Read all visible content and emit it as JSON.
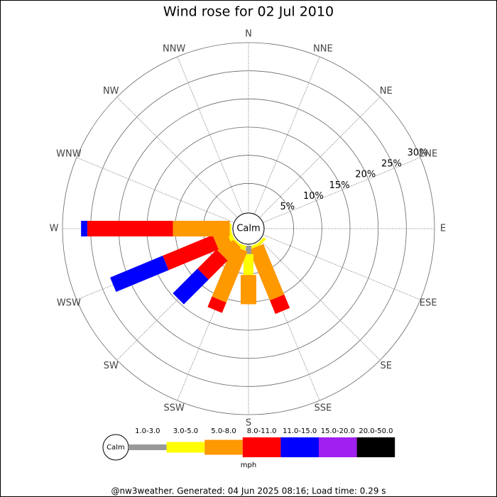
{
  "chart_data": {
    "type": "windrose",
    "title": "Wind rose for 02 Jul 2010",
    "categories": [
      "N",
      "NNE",
      "NE",
      "ENE",
      "E",
      "ESE",
      "SE",
      "SSE",
      "S",
      "SSW",
      "SW",
      "WSW",
      "W",
      "WNW",
      "NW",
      "NNW"
    ],
    "calm_label": "Calm",
    "rlim": [
      0,
      30
    ],
    "rticks": [
      {
        "value": 5,
        "label": "5%"
      },
      {
        "value": 10,
        "label": "10%"
      },
      {
        "value": 15,
        "label": "15%"
      },
      {
        "value": 20,
        "label": "20%"
      },
      {
        "value": 25,
        "label": "25%"
      },
      {
        "value": 30,
        "label": "30%"
      }
    ],
    "legend_unit": "mph",
    "series": [
      {
        "name": "1.0-3.0",
        "color": "#999999",
        "values": [
          0,
          0,
          0,
          0,
          0,
          0,
          0,
          0,
          1.5,
          0,
          0,
          0,
          0,
          0,
          0,
          0
        ]
      },
      {
        "name": "3.0-5.0",
        "color": "#ffff00",
        "values": [
          0,
          0,
          0,
          0,
          0,
          0,
          0.5,
          0.5,
          3.7,
          0.8,
          0.3,
          0.8,
          0.3,
          0,
          0,
          0
        ]
      },
      {
        "name": "5.0-8.0",
        "color": "#ff9900",
        "values": [
          0,
          0,
          0,
          0,
          0,
          0,
          0,
          9.7,
          5.2,
          9.8,
          3.3,
          2.5,
          10.1,
          0,
          0,
          0
        ]
      },
      {
        "name": "8.0-11.0",
        "color": "#ff0000",
        "values": [
          0,
          0,
          0,
          0,
          0,
          0,
          0,
          2.6,
          0,
          2.0,
          4.8,
          9.6,
          15.2,
          0,
          0,
          0
        ]
      },
      {
        "name": "11.0-15.0",
        "color": "#0000ff",
        "values": [
          0,
          0,
          0,
          0,
          0,
          0,
          0,
          0,
          0,
          0,
          6.2,
          10.1,
          1.1,
          0,
          0,
          0
        ]
      },
      {
        "name": "15.0-20.0",
        "color": "#a020f0",
        "values": [
          0,
          0,
          0,
          0,
          0,
          0,
          0,
          0,
          0,
          0,
          0,
          0,
          0,
          0,
          0,
          0
        ]
      },
      {
        "name": "20.0-50.0",
        "color": "#000000",
        "values": [
          0,
          0,
          0,
          0,
          0,
          0,
          0,
          0,
          0,
          0,
          0,
          0,
          0,
          0,
          0,
          0
        ]
      }
    ],
    "footer": "@nw3weather. Generated: 04 Jun 2025 08:16; Load time: 0.29 s"
  }
}
